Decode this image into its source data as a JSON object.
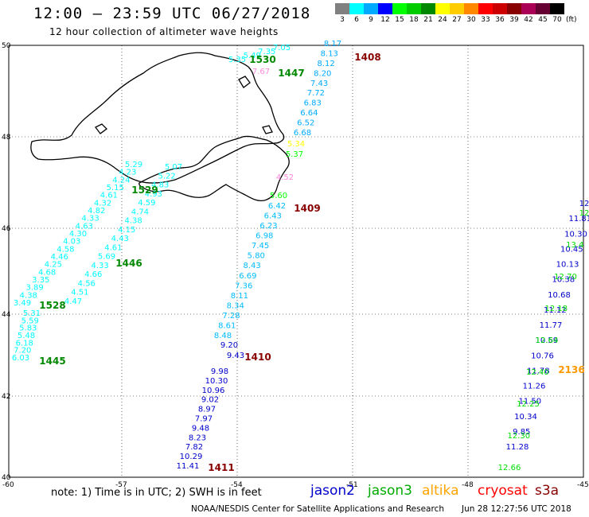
{
  "header": {
    "title": "12:00 – 23:59 UTC 06/27/2018",
    "subtitle": "12 hour collection of altimeter wave heights"
  },
  "legend": {
    "unit": "(ft)",
    "labels": [
      "3",
      "6",
      "9",
      "12",
      "15",
      "18",
      "21",
      "24",
      "27",
      "30",
      "33",
      "36",
      "39",
      "42",
      "45",
      "70"
    ],
    "colors": [
      "#808080",
      "#00ffff",
      "#00aaff",
      "#0000ff",
      "#00ff00",
      "#00cc00",
      "#008800",
      "#ffff00",
      "#ffcc00",
      "#ff8800",
      "#ff0000",
      "#cc0000",
      "#880000",
      "#aa0055",
      "#660033",
      "#000000"
    ]
  },
  "map": {
    "lat_ticks": [
      "50",
      "48",
      "46",
      "44",
      "42",
      "40"
    ],
    "lon_ticks": [
      "-60",
      "-57",
      "-54",
      "-51",
      "-48",
      "-45"
    ],
    "track_ids": [
      {
        "text": "1408",
        "color": "#880000"
      },
      {
        "text": "1530",
        "color": "#008800"
      },
      {
        "text": "1447",
        "color": "#008800"
      },
      {
        "text": "1409",
        "color": "#880000"
      },
      {
        "text": "1529",
        "color": "#008800"
      },
      {
        "text": "1446",
        "color": "#008800"
      },
      {
        "text": "1528",
        "color": "#008800"
      },
      {
        "text": "1445",
        "color": "#008800"
      },
      {
        "text": "1410",
        "color": "#880000"
      },
      {
        "text": "1411",
        "color": "#880000"
      },
      {
        "text": "2136",
        "color": "#ff9900"
      }
    ],
    "tracks": [
      {
        "name": "track-1408-upper",
        "color": "#00aaff",
        "values": [
          "8.17",
          "8.13",
          "8.12",
          "8.20",
          "7.43",
          "7.72",
          "6.83",
          "6.64",
          "6.52",
          "6.68"
        ]
      },
      {
        "name": "track-1408-mid",
        "color": "#00bbff",
        "values": [
          "6.42",
          "6.43",
          "6.23",
          "6.98",
          "7.45",
          "5.80",
          "8.43",
          "6.69",
          "7.36",
          "8.11",
          "8.34",
          "7.28",
          "8.61",
          "8.48"
        ]
      },
      {
        "name": "track-1410-blue",
        "color": "#0000cc",
        "values": [
          "9.20",
          "9.43"
        ]
      },
      {
        "name": "track-1411",
        "color": "#0000cc",
        "values": [
          "9.98",
          "10.30",
          "10.96",
          "9.02",
          "8.97",
          "7.97",
          "9.48",
          "8.23",
          "7.82",
          "10.29",
          "11.41"
        ]
      },
      {
        "name": "track-1530-cyan",
        "color": "#00ffff",
        "values": [
          "7.05",
          "7.35",
          "5.49",
          "5.35"
        ]
      },
      {
        "name": "track-1447-altika",
        "color": "#ffff00",
        "values": [
          "5.34"
        ]
      },
      {
        "name": "track-1447-green",
        "color": "#00ff00",
        "values": [
          "5.37",
          "5.60"
        ]
      },
      {
        "name": "track-1447-pink",
        "color": "#ff88dd",
        "values": [
          "7.67",
          "4.52"
        ]
      },
      {
        "name": "track-1529-cyan",
        "color": "#00ffff",
        "values": [
          "5.29",
          "4.23",
          "4.24",
          "5.15",
          "4.61",
          "4.32",
          "4.82",
          "4.33",
          "4.63",
          "4.30",
          "4.03",
          "4.58",
          "4.46",
          "4.25",
          "4.68",
          "3.35",
          "3.89",
          "4.38",
          "3.49"
        ]
      },
      {
        "name": "track-1529-inner",
        "color": "#00ffff",
        "values": [
          "5.07",
          "5.22",
          "4.83",
          "4.93",
          "4.59",
          "4.74",
          "4.38",
          "4.15",
          "4.43",
          "4.61",
          "5.69",
          "4.33",
          "4.66",
          "4.56",
          "4.51",
          "4.47"
        ]
      },
      {
        "name": "track-1528-cyan",
        "color": "#00ffff",
        "values": [
          "5.31",
          "5.59",
          "5.83",
          "5.48",
          "6.18",
          "7.20",
          "6.03"
        ]
      },
      {
        "name": "track-2136-blue",
        "color": "#0000cc",
        "values": [
          "12",
          "11.81",
          "10.30",
          "10.45",
          "10.13",
          "10.38",
          "10.68",
          "11.12",
          "11.77",
          "10.59",
          "10.76",
          "11.78",
          "11.26",
          "11.50",
          "10.34",
          "9.85",
          "11.28"
        ]
      },
      {
        "name": "track-2136-green",
        "color": "#00dd00",
        "values": [
          "12",
          "13.4",
          "12.70",
          "12.18",
          "12.64",
          "12.40",
          "12.25",
          "12.30",
          "12.66"
        ]
      }
    ]
  },
  "footer": {
    "note": "note: 1) Time is in UTC; 2) SWH is in feet",
    "satellites": [
      {
        "name": "jason2",
        "color": "#0000cc"
      },
      {
        "name": "jason3",
        "color": "#00aa00"
      },
      {
        "name": "altika",
        "color": "#ffa500"
      },
      {
        "name": "cryosat",
        "color": "#ff0000"
      },
      {
        "name": "s3a",
        "color": "#880000"
      }
    ],
    "credit": "NOAA/NESDIS Center for Satellite Applications and Research",
    "timestamp": "Jun 28 12:27:56 UTC 2018"
  }
}
